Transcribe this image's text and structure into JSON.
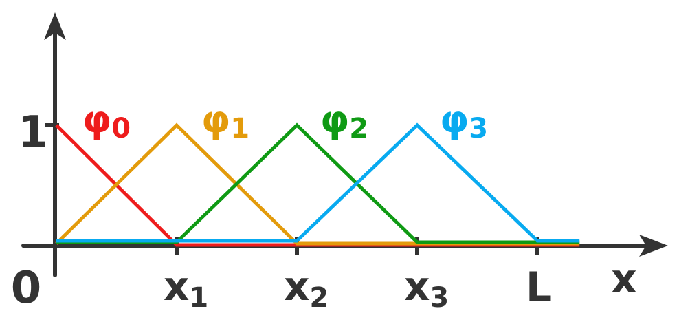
{
  "axis": {
    "origin_label": "0",
    "y_tick_label": "1",
    "x_label": "x",
    "end_label": "L"
  },
  "nodes": [
    {
      "name": "x",
      "sub": "1"
    },
    {
      "name": "x",
      "sub": "2"
    },
    {
      "name": "x",
      "sub": "3"
    }
  ],
  "functions": [
    {
      "symbol": "φ",
      "sub": "0",
      "color": "#ee1c1c",
      "points": [
        [
          0,
          1
        ],
        [
          1,
          0
        ],
        [
          4.35,
          0
        ]
      ]
    },
    {
      "symbol": "φ",
      "sub": "1",
      "color": "#e39b0b",
      "points": [
        [
          0,
          0
        ],
        [
          1,
          1
        ],
        [
          2,
          0
        ],
        [
          4.35,
          0
        ]
      ]
    },
    {
      "symbol": "φ",
      "sub": "2",
      "color": "#0f9a14",
      "points": [
        [
          0,
          0
        ],
        [
          1,
          0
        ],
        [
          2,
          1
        ],
        [
          3,
          0
        ],
        [
          4.35,
          0
        ]
      ]
    },
    {
      "symbol": "φ",
      "sub": "3",
      "color": "#08aaf0",
      "points": [
        [
          0,
          0
        ],
        [
          2,
          0
        ],
        [
          3,
          1
        ],
        [
          4,
          0
        ],
        [
          4.35,
          0
        ]
      ]
    }
  ]
}
